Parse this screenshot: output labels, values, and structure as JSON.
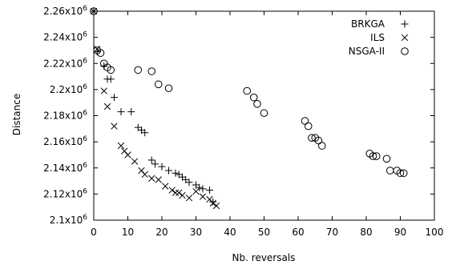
{
  "chart_data": {
    "type": "scatter",
    "title": "",
    "xlabel": "Nb. reversals",
    "ylabel": "Distance",
    "xlim": [
      0,
      100
    ],
    "ylim": [
      2100000,
      2260000
    ],
    "x_ticks": [
      0,
      10,
      20,
      30,
      40,
      50,
      60,
      70,
      80,
      90,
      100
    ],
    "x_tick_labels": [
      "0",
      "10",
      "20",
      "30",
      "40",
      "50",
      "60",
      "70",
      "80",
      "90",
      "100"
    ],
    "y_ticks": [
      2100000,
      2120000,
      2140000,
      2160000,
      2180000,
      2200000,
      2220000,
      2240000,
      2260000
    ],
    "y_tick_labels": [
      {
        "mantissa": "2.1x10",
        "exp": "6"
      },
      {
        "mantissa": "2.12x10",
        "exp": "6"
      },
      {
        "mantissa": "2.14x10",
        "exp": "6"
      },
      {
        "mantissa": "2.16x10",
        "exp": "6"
      },
      {
        "mantissa": "2.18x10",
        "exp": "6"
      },
      {
        "mantissa": "2.2x10",
        "exp": "6"
      },
      {
        "mantissa": "2.22x10",
        "exp": "6"
      },
      {
        "mantissa": "2.24x10",
        "exp": "6"
      },
      {
        "mantissa": "2.26x10",
        "exp": "6"
      }
    ],
    "legend_position": "top-right",
    "grid": false,
    "series": [
      {
        "name": "BRKGA",
        "marker": "plus",
        "points": [
          [
            0,
            2260000
          ],
          [
            1,
            2229000
          ],
          [
            3,
            2218000
          ],
          [
            4,
            2208000
          ],
          [
            5,
            2208000
          ],
          [
            6,
            2194000
          ],
          [
            8,
            2183000
          ],
          [
            11,
            2183000
          ],
          [
            13,
            2171000
          ],
          [
            14,
            2169000
          ],
          [
            15,
            2167000
          ],
          [
            17,
            2146000
          ],
          [
            18,
            2143000
          ],
          [
            20,
            2141000
          ],
          [
            22,
            2138000
          ],
          [
            24,
            2136000
          ],
          [
            25,
            2135000
          ],
          [
            26,
            2133000
          ],
          [
            27,
            2131000
          ],
          [
            28,
            2129000
          ],
          [
            30,
            2127000
          ],
          [
            31,
            2125000
          ],
          [
            32,
            2124000
          ],
          [
            34,
            2123000
          ],
          [
            35,
            2114000
          ]
        ]
      },
      {
        "name": "ILS",
        "marker": "cross",
        "points": [
          [
            0,
            2260000
          ],
          [
            1,
            2231000
          ],
          [
            3,
            2199000
          ],
          [
            4,
            2187000
          ],
          [
            6,
            2172000
          ],
          [
            8,
            2157000
          ],
          [
            9,
            2153000
          ],
          [
            10,
            2150000
          ],
          [
            12,
            2145000
          ],
          [
            14,
            2138000
          ],
          [
            15,
            2135000
          ],
          [
            17,
            2132000
          ],
          [
            19,
            2131000
          ],
          [
            21,
            2126000
          ],
          [
            23,
            2123000
          ],
          [
            24,
            2121000
          ],
          [
            25,
            2121000
          ],
          [
            26,
            2119000
          ],
          [
            28,
            2117000
          ],
          [
            30,
            2122000
          ],
          [
            32,
            2118000
          ],
          [
            34,
            2116000
          ],
          [
            35,
            2113000
          ],
          [
            36,
            2111000
          ]
        ]
      },
      {
        "name": "NSGA-II",
        "marker": "circle",
        "points": [
          [
            0,
            2260000
          ],
          [
            1,
            2230000
          ],
          [
            2,
            2228000
          ],
          [
            3,
            2220000
          ],
          [
            4,
            2217000
          ],
          [
            5,
            2215000
          ],
          [
            13,
            2215000
          ],
          [
            17,
            2214000
          ],
          [
            19,
            2204000
          ],
          [
            22,
            2201000
          ],
          [
            45,
            2199000
          ],
          [
            47,
            2194000
          ],
          [
            48,
            2189000
          ],
          [
            50,
            2182000
          ],
          [
            62,
            2176000
          ],
          [
            63,
            2172000
          ],
          [
            64,
            2163000
          ],
          [
            65,
            2163000
          ],
          [
            66,
            2161000
          ],
          [
            67,
            2157000
          ],
          [
            81,
            2151000
          ],
          [
            82,
            2149000
          ],
          [
            83,
            2149000
          ],
          [
            86,
            2147000
          ],
          [
            87,
            2138000
          ],
          [
            89,
            2138000
          ],
          [
            90,
            2136000
          ],
          [
            91,
            2136000
          ]
        ]
      }
    ]
  }
}
